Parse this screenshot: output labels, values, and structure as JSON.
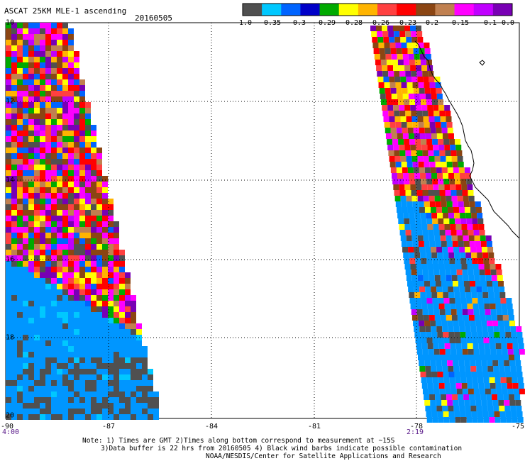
{
  "title": "ASCAT 25KM MLE-1 ascending",
  "date": "20160505",
  "colorbar": {
    "colors": [
      "#505050",
      "#00c8ff",
      "#0064ff",
      "#0000c8",
      "#00aa00",
      "#ffff00",
      "#ffb400",
      "#ff4040",
      "#ff0000",
      "#8b4513",
      "#c08050",
      "#ff00ff",
      "#c000ff",
      "#7800b4"
    ],
    "labels": [
      "-1.0",
      "-0.35",
      "-0.3",
      "-0.29",
      "-0.28",
      "-0.26",
      "-0.23",
      "-0.2",
      "-0.15",
      "-0.1",
      "0.0"
    ]
  },
  "axes": {
    "x_ticks": [
      "-90",
      "-87",
      "-84",
      "-81",
      "-78",
      "-75"
    ],
    "y_ticks": [
      "10",
      "12",
      "14",
      "16",
      "18",
      "20"
    ]
  },
  "times": {
    "left": "4:00",
    "right": "2:19"
  },
  "notes": {
    "line1": "Note: 1) Times are GMT 2)Times along bottom correspond to measurement at ~15S",
    "line2": "3)Data buffer is 22 hrs from 20160505 4) Black wind barbs indicate possible contamination",
    "line3": "NOAA/NESDIS/Center for Satellite Applications and Research"
  }
}
